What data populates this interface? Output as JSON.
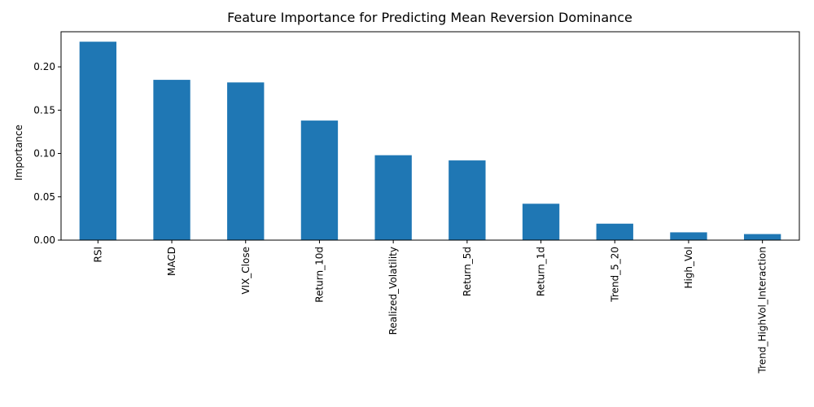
{
  "chart_data": {
    "type": "bar",
    "title": "Feature Importance for Predicting Mean Reversion Dominance",
    "xlabel": "",
    "ylabel": "Importance",
    "categories": [
      "RSI",
      "MACD",
      "VIX_Close",
      "Return_10d",
      "Realized_Volatility",
      "Return_5d",
      "Return_1d",
      "Trend_5_20",
      "High_Vol",
      "Trend_HighVol_Interaction"
    ],
    "values": [
      0.229,
      0.185,
      0.182,
      0.138,
      0.098,
      0.092,
      0.042,
      0.019,
      0.009,
      0.007
    ],
    "ylim": [
      0,
      0.2405
    ],
    "yticks": [
      "0.00",
      "0.05",
      "0.10",
      "0.15",
      "0.20"
    ],
    "ytick_values": [
      0,
      0.05,
      0.1,
      0.15,
      0.2
    ],
    "grid": false,
    "legend": "none",
    "bar_color": "#1f77b4"
  }
}
